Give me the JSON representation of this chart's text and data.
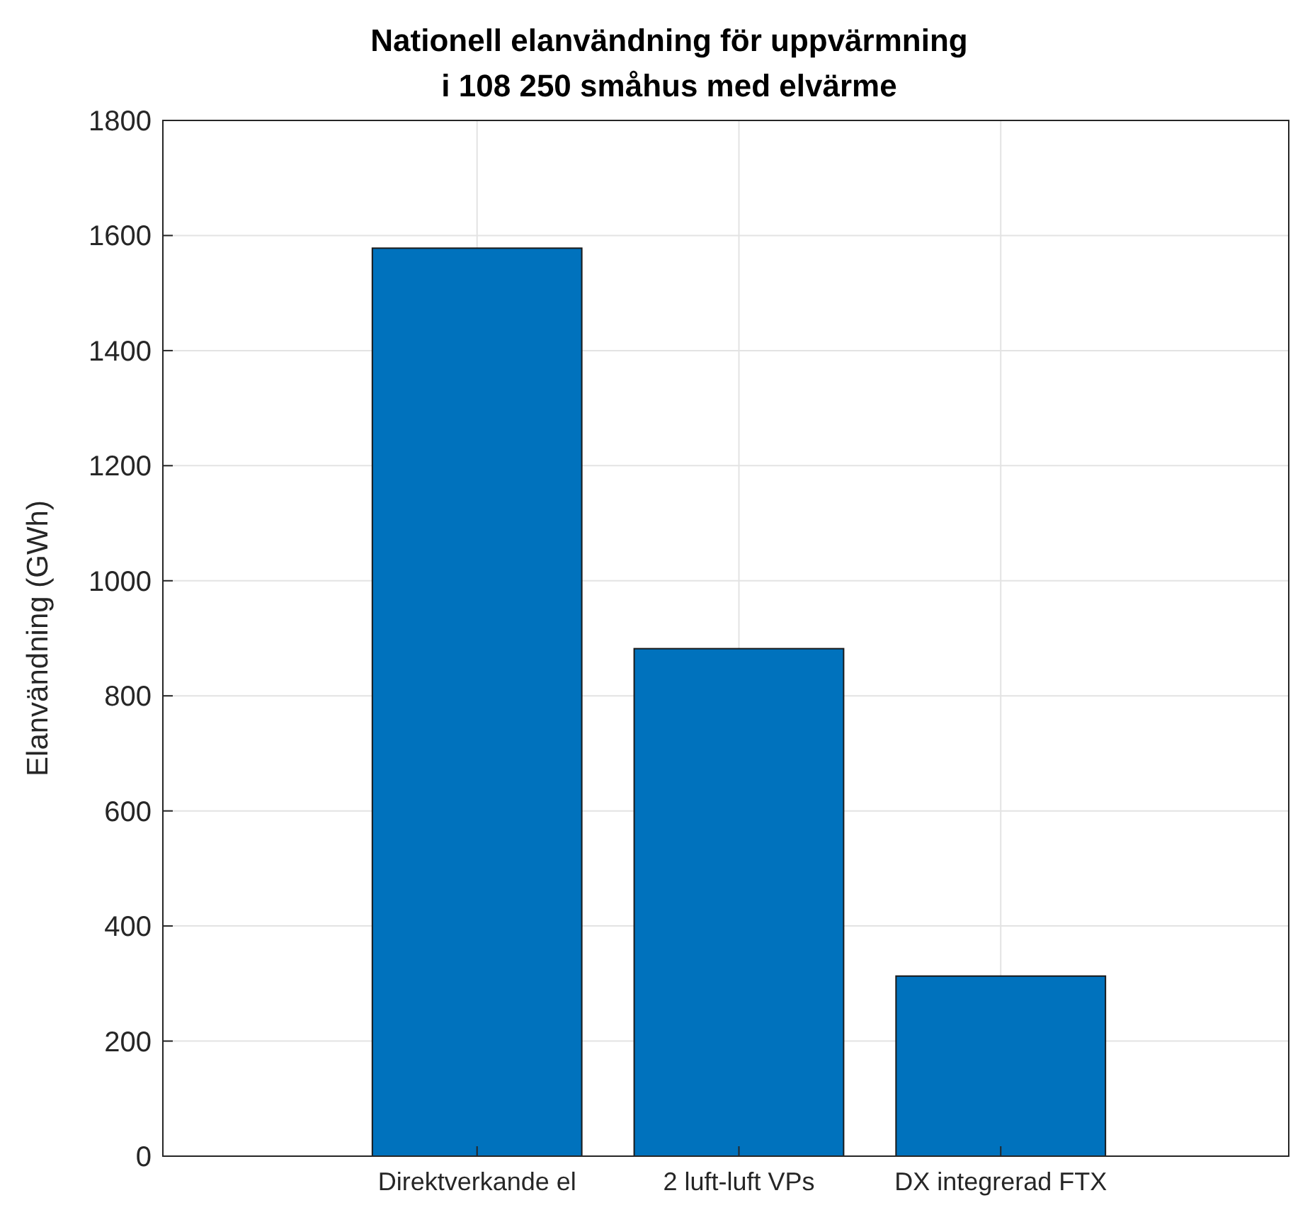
{
  "chart_data": {
    "type": "bar",
    "title": "Nationell elanvändning för uppvärmning\ni 108 250 småhus med elvärme",
    "ylabel": "Elanvändning (GWh)",
    "categories": [
      "Direktverkande el",
      "2 luft-luft VPs",
      "DX integrerad FTX"
    ],
    "values": [
      1578,
      882,
      313
    ],
    "color": "#0072bd",
    "ylim": [
      0,
      1800
    ],
    "yticks": [
      0,
      200,
      400,
      600,
      800,
      1000,
      1200,
      1400,
      1600,
      1800
    ],
    "grid": true
  }
}
